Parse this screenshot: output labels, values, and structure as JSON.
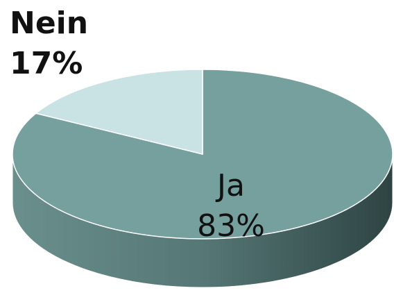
{
  "chart_data": {
    "type": "pie",
    "categories": [
      "Ja",
      "Nein"
    ],
    "values": [
      83,
      17
    ],
    "value_labels": [
      "83%",
      "17%"
    ],
    "colors": [
      "#76a09e",
      "#c9e2e3"
    ]
  }
}
